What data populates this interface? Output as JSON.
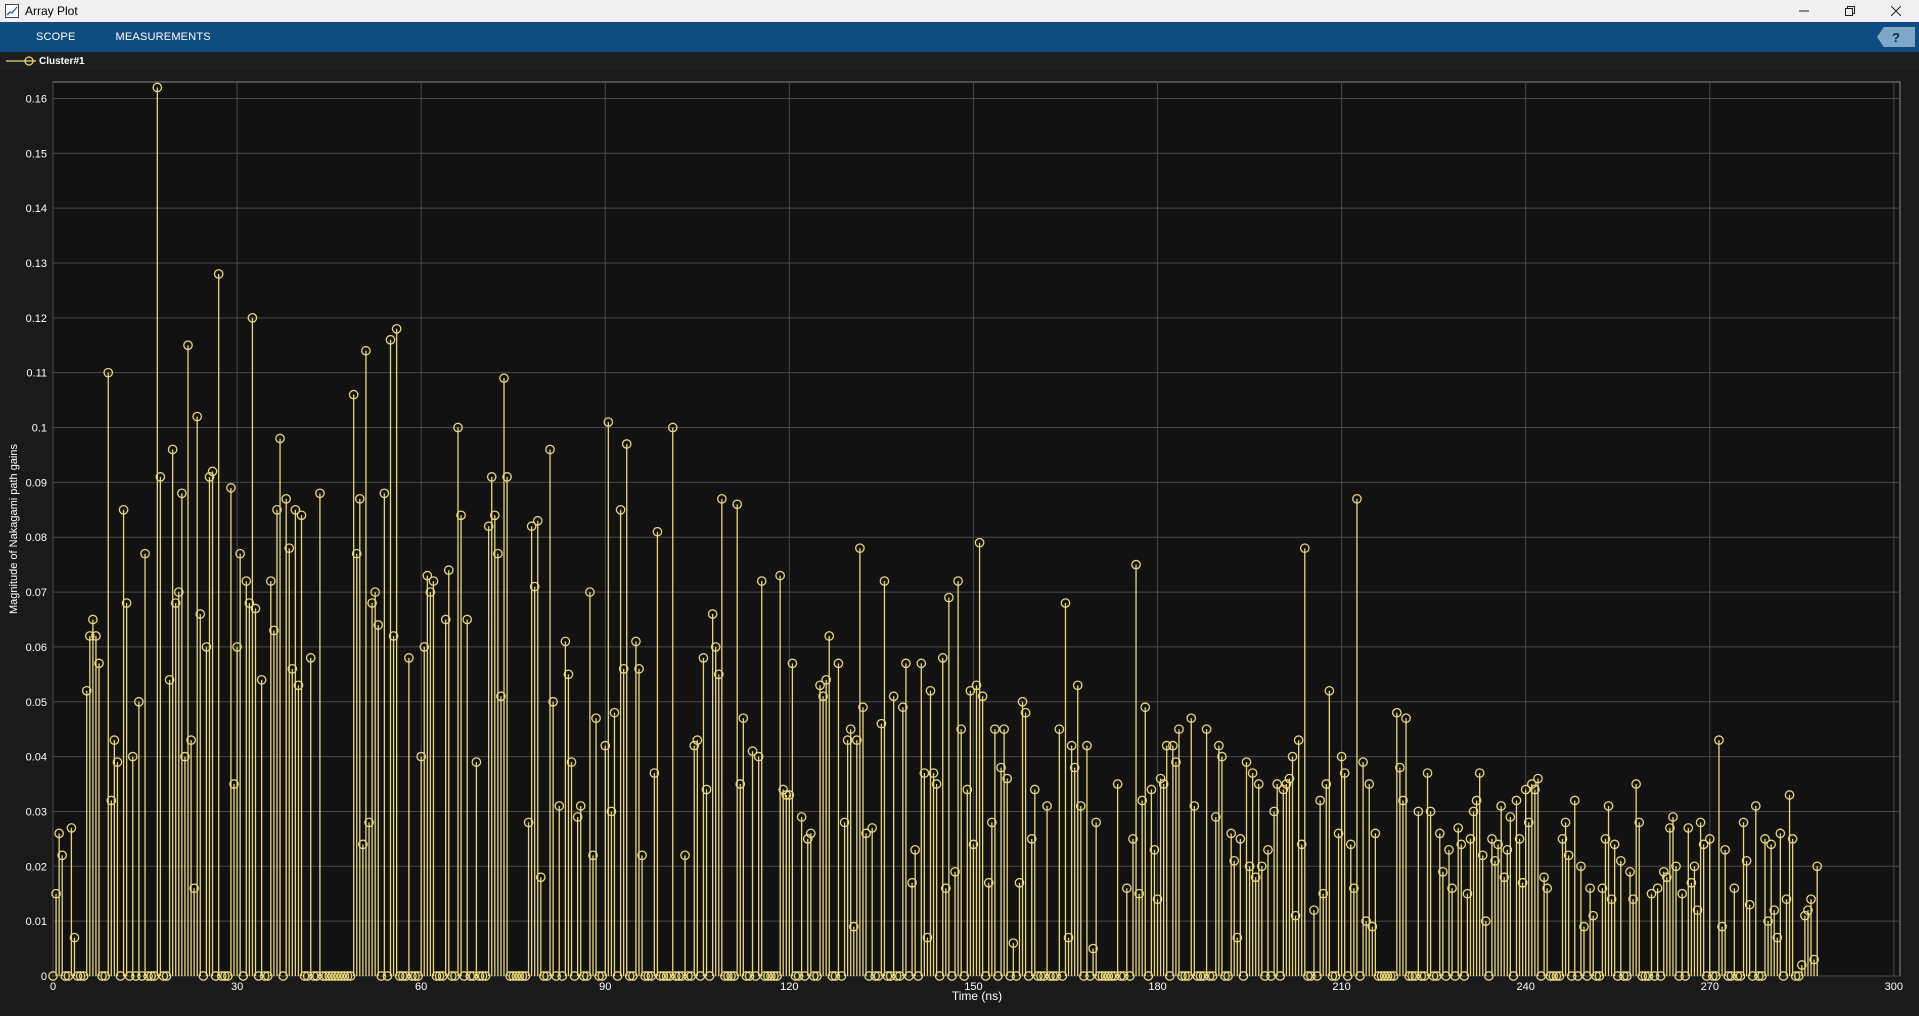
{
  "window": {
    "title": "Array Plot",
    "minimize_icon": "minimize-icon",
    "restore_icon": "restore-icon",
    "close_icon": "close-icon"
  },
  "toolstrip": {
    "tabs": [
      {
        "label": "SCOPE"
      },
      {
        "label": "MEASUREMENTS"
      }
    ],
    "help_label": "?"
  },
  "legend": {
    "label": "Cluster#1"
  },
  "colors": {
    "series": "#e8d77a",
    "axes_bg": "#121212",
    "grid": "#4a4a4a",
    "text": "#ffffff",
    "toolstrip": "#0f4c80"
  },
  "chart_data": {
    "type": "stem",
    "xlabel": "Time (ns)",
    "ylabel": "Magnitude of Nakagami path gains",
    "xlim": [
      0,
      301
    ],
    "ylim": [
      0,
      0.163
    ],
    "xticks": [
      0,
      30,
      60,
      90,
      120,
      150,
      180,
      210,
      240,
      270,
      300
    ],
    "yticks": [
      0,
      0.01,
      0.02,
      0.03,
      0.04,
      0.05,
      0.06,
      0.07,
      0.08,
      0.09,
      0.1,
      0.11,
      0.12,
      0.13,
      0.14,
      0.15,
      0.16
    ],
    "grid": true,
    "legend_position": "top-left",
    "series": [
      {
        "name": "Cluster#1",
        "sample_interval_ns": 0.5,
        "values": [
          0,
          0.015,
          0.026,
          0.022,
          0,
          0,
          0.027,
          0.007,
          0,
          0,
          0,
          0.052,
          0.062,
          0.065,
          0.062,
          0.057,
          0,
          0,
          0.11,
          0.032,
          0.043,
          0.039,
          0,
          0.085,
          0.068,
          0,
          0.04,
          0,
          0.05,
          0,
          0.077,
          0,
          0,
          0,
          0.162,
          0.091,
          0,
          0,
          0.054,
          0.096,
          0.068,
          0.07,
          0.088,
          0.04,
          0.115,
          0.043,
          0.016,
          0.102,
          0.066,
          0,
          0.06,
          0.091,
          0.092,
          0,
          0.128,
          0,
          0,
          0,
          0.089,
          0.035,
          0.06,
          0.077,
          0,
          0.072,
          0.068,
          0.12,
          0.067,
          0,
          0.054,
          0,
          0,
          0.072,
          0.063,
          0.085,
          0.098,
          0,
          0.087,
          0.078,
          0.056,
          0.085,
          0.053,
          0.084,
          0,
          0,
          0.058,
          0,
          0,
          0.088,
          0,
          0,
          0,
          0,
          0,
          0,
          0,
          0,
          0,
          0,
          0.106,
          0.077,
          0.087,
          0.024,
          0.114,
          0.028,
          0.068,
          0.07,
          0.064,
          0,
          0.088,
          0,
          0.116,
          0.062,
          0.118,
          0,
          0,
          0,
          0.058,
          0,
          0,
          0,
          0.04,
          0.06,
          0.073,
          0.07,
          0.072,
          0,
          0,
          0,
          0.065,
          0.074,
          0,
          0,
          0.1,
          0.084,
          0,
          0.065,
          0,
          0,
          0.039,
          0,
          0,
          0,
          0.082,
          0.091,
          0.084,
          0.077,
          0.051,
          0.109,
          0.091,
          0,
          0,
          0,
          0,
          0,
          0,
          0.028,
          0.082,
          0.071,
          0.083,
          0.018,
          0,
          0,
          0.096,
          0.05,
          0,
          0.031,
          0,
          0.061,
          0.055,
          0.039,
          0,
          0.029,
          0.031,
          0,
          0,
          0.07,
          0.022,
          0.047,
          0,
          0,
          0.042,
          0.101,
          0.03,
          0.048,
          0,
          0.085,
          0.056,
          0.097,
          0,
          0,
          0.061,
          0.056,
          0.022,
          0,
          0,
          0,
          0.037,
          0.081,
          0,
          0,
          0,
          0,
          0.1,
          0,
          0,
          0,
          0.022,
          0,
          0,
          0.042,
          0.043,
          0,
          0.058,
          0.034,
          0,
          0.066,
          0.06,
          0.055,
          0.087,
          0,
          0,
          0,
          0,
          0.086,
          0.035,
          0.047,
          0,
          0,
          0.041,
          0,
          0.04,
          0.072,
          0,
          0,
          0,
          0,
          0,
          0.073,
          0.034,
          0.033,
          0.033,
          0.057,
          0,
          0,
          0.029,
          0,
          0.025,
          0.026,
          0,
          0,
          0.053,
          0.051,
          0.054,
          0.062,
          0,
          0,
          0.057,
          0,
          0.028,
          0.043,
          0.045,
          0.009,
          0.043,
          0.078,
          0.049,
          0.026,
          0,
          0.027,
          0,
          0,
          0.046,
          0.072,
          0,
          0,
          0.051,
          0,
          0,
          0.049,
          0.057,
          0,
          0.017,
          0.023,
          0,
          0.057,
          0.037,
          0.007,
          0.052,
          0.037,
          0.035,
          0,
          0.058,
          0.016,
          0.069,
          0,
          0.019,
          0.072,
          0.045,
          0,
          0.034,
          0.052,
          0.024,
          0.053,
          0.079,
          0.051,
          0,
          0.017,
          0.028,
          0.045,
          0,
          0.038,
          0.045,
          0.036,
          0,
          0.006,
          0,
          0.017,
          0.05,
          0.048,
          0,
          0.025,
          0.034,
          0,
          0,
          0,
          0.031,
          0,
          0,
          0,
          0.045,
          0,
          0.068,
          0.007,
          0.042,
          0.038,
          0.053,
          0.031,
          0,
          0.042,
          0,
          0.005,
          0.028,
          0,
          0,
          0,
          0,
          0,
          0,
          0.035,
          0,
          0,
          0.016,
          0,
          0.025,
          0.075,
          0.015,
          0.032,
          0.049,
          0,
          0.034,
          0.023,
          0.014,
          0.036,
          0.035,
          0.042,
          0,
          0.042,
          0.039,
          0.045,
          0,
          0,
          0,
          0.047,
          0.031,
          0,
          0,
          0,
          0.045,
          0,
          0,
          0.029,
          0.042,
          0.04,
          0,
          0,
          0.026,
          0.021,
          0.007,
          0.025,
          0,
          0.039,
          0.02,
          0.037,
          0.018,
          0.035,
          0.02,
          0,
          0.023,
          0,
          0.03,
          0.035,
          0,
          0.034,
          0.035,
          0.036,
          0.04,
          0.011,
          0.043,
          0.024,
          0.078,
          0,
          0,
          0.012,
          0,
          0.032,
          0.015,
          0.035,
          0.052,
          0,
          0,
          0.026,
          0.04,
          0.037,
          0,
          0.024,
          0.016,
          0.087,
          0,
          0.039,
          0.01,
          0.035,
          0.009,
          0.026,
          0,
          0,
          0,
          0,
          0,
          0,
          0.048,
          0.038,
          0.032,
          0.047,
          0,
          0,
          0,
          0.03,
          0,
          0,
          0.037,
          0.03,
          0,
          0,
          0.026,
          0.019,
          0,
          0.023,
          0.016,
          0,
          0.027,
          0.024,
          0,
          0.015,
          0.025,
          0.03,
          0.032,
          0.037,
          0.022,
          0.01,
          0,
          0.025,
          0.021,
          0.024,
          0.031,
          0.018,
          0.023,
          0.029,
          0,
          0.032,
          0.025,
          0.017,
          0.034,
          0.028,
          0.035,
          0.034,
          0.036,
          0,
          0.018,
          0.016,
          0,
          0,
          0,
          0,
          0.025,
          0.028,
          0.022,
          0,
          0.032,
          0,
          0.02,
          0.009,
          0,
          0.016,
          0.011,
          0,
          0,
          0.016,
          0.025,
          0.031,
          0.014,
          0.024,
          0,
          0.021,
          0,
          0,
          0.019,
          0.014,
          0.035,
          0.028,
          0,
          0,
          0,
          0.015,
          0,
          0.016,
          0,
          0.019,
          0.018,
          0.027,
          0.029,
          0.02,
          0,
          0.015,
          0,
          0.027,
          0.017,
          0.02,
          0.012,
          0.028,
          0.024,
          0,
          0.025,
          0,
          0,
          0.043,
          0.009,
          0.023,
          0,
          0,
          0.016,
          0,
          0,
          0.028,
          0.021,
          0.013,
          0,
          0.031,
          0,
          0,
          0.025,
          0.01,
          0.024,
          0.012,
          0.007,
          0.026,
          0,
          0.014,
          0.033,
          0.025,
          0,
          0,
          0.002,
          0.011,
          0.012,
          0.014,
          0.003,
          0.02
        ]
      }
    ]
  }
}
